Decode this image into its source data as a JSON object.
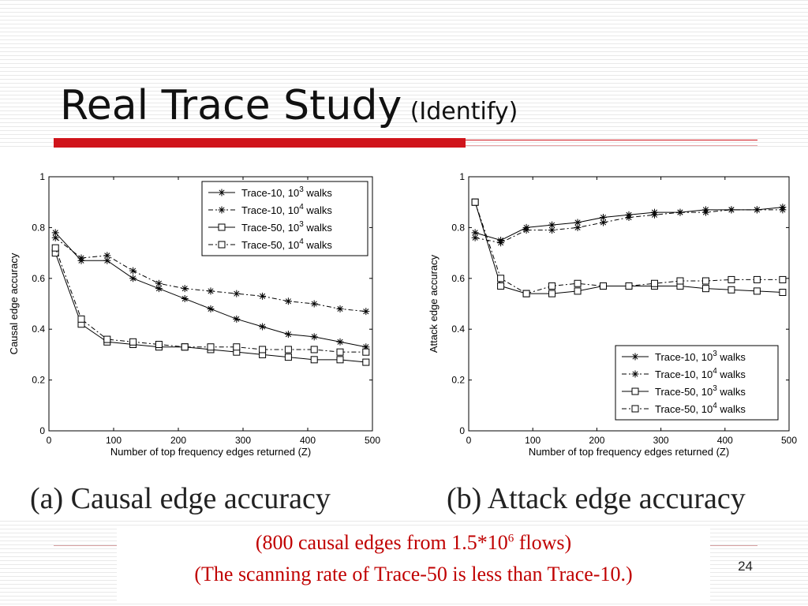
{
  "slide": {
    "title": "Real Trace Study",
    "subtitle": "(Identify)",
    "caption_a": "(a) Causal edge accuracy",
    "caption_b": "(b) Attack edge accuracy",
    "note_line1_pre": "(800 causal edges from 1.5*10",
    "note_line1_sup": "6",
    "note_line1_post": " flows)",
    "note_line2": "(The scanning rate of Trace-50 is less than Trace-10.)",
    "page_number": "24"
  },
  "chart_data": [
    {
      "type": "line",
      "xlabel": "Number of top frequency edges returned (Z)",
      "ylabel": "Causal edge accuracy",
      "xlim": [
        0,
        500
      ],
      "ylim": [
        0,
        1
      ],
      "xticks": [
        "100",
        "200",
        "300",
        "400",
        "500"
      ],
      "yticks": [
        "0",
        "0.2",
        "0.4",
        "0.6",
        "0.8",
        "1"
      ],
      "legend_position": "top-right",
      "grid": false,
      "x": [
        10,
        50,
        90,
        130,
        170,
        210,
        250,
        290,
        330,
        370,
        410,
        450,
        490
      ],
      "series": [
        {
          "name": "Trace-10, 10",
          "name_sup": "3",
          "name_post": " walks",
          "marker": "star",
          "line": "solid",
          "values": [
            0.78,
            0.67,
            0.67,
            0.6,
            0.56,
            0.52,
            0.48,
            0.44,
            0.41,
            0.38,
            0.37,
            0.35,
            0.33
          ]
        },
        {
          "name": "Trace-10, 10",
          "name_sup": "4",
          "name_post": " walks",
          "marker": "star",
          "line": "dashdot",
          "values": [
            0.76,
            0.68,
            0.69,
            0.63,
            0.58,
            0.56,
            0.55,
            0.54,
            0.53,
            0.51,
            0.5,
            0.48,
            0.47
          ]
        },
        {
          "name": "Trace-50, 10",
          "name_sup": "3",
          "name_post": " walks",
          "marker": "square",
          "line": "solid",
          "values": [
            0.7,
            0.42,
            0.35,
            0.34,
            0.33,
            0.33,
            0.32,
            0.31,
            0.3,
            0.29,
            0.28,
            0.28,
            0.27
          ]
        },
        {
          "name": "Trace-50, 10",
          "name_sup": "4",
          "name_post": " walks",
          "marker": "square",
          "line": "dashdot",
          "values": [
            0.72,
            0.44,
            0.36,
            0.35,
            0.34,
            0.33,
            0.33,
            0.33,
            0.32,
            0.32,
            0.32,
            0.31,
            0.31
          ]
        }
      ]
    },
    {
      "type": "line",
      "xlabel": "Number of top frequency edges returned (Z)",
      "ylabel": "Attack edge accuracy",
      "xlim": [
        0,
        500
      ],
      "ylim": [
        0,
        1
      ],
      "xticks": [
        "100",
        "200",
        "300",
        "400",
        "500"
      ],
      "yticks": [
        "0",
        "0.2",
        "0.4",
        "0.6",
        "0.8",
        "1"
      ],
      "legend_position": "lower-right",
      "grid": false,
      "x": [
        10,
        50,
        90,
        130,
        170,
        210,
        250,
        290,
        330,
        370,
        410,
        450,
        490
      ],
      "series": [
        {
          "name": "Trace-10, 10",
          "name_sup": "3",
          "name_post": " walks",
          "marker": "star",
          "line": "solid",
          "values": [
            0.78,
            0.75,
            0.8,
            0.81,
            0.82,
            0.84,
            0.85,
            0.86,
            0.86,
            0.87,
            0.87,
            0.87,
            0.88
          ]
        },
        {
          "name": "Trace-10, 10",
          "name_sup": "4",
          "name_post": " walks",
          "marker": "star",
          "line": "dashdot",
          "values": [
            0.76,
            0.74,
            0.79,
            0.79,
            0.8,
            0.82,
            0.84,
            0.85,
            0.86,
            0.86,
            0.87,
            0.87,
            0.87
          ]
        },
        {
          "name": "Trace-50, 10",
          "name_sup": "3",
          "name_post": " walks",
          "marker": "square",
          "line": "solid",
          "values": [
            0.9,
            0.57,
            0.54,
            0.54,
            0.55,
            0.57,
            0.57,
            0.57,
            0.57,
            0.56,
            0.555,
            0.55,
            0.545
          ]
        },
        {
          "name": "Trace-50, 10",
          "name_sup": "4",
          "name_post": " walks",
          "marker": "square",
          "line": "dashdot",
          "values": [
            0.9,
            0.6,
            0.54,
            0.57,
            0.58,
            0.57,
            0.57,
            0.58,
            0.59,
            0.59,
            0.595,
            0.595,
            0.595
          ]
        }
      ]
    }
  ]
}
